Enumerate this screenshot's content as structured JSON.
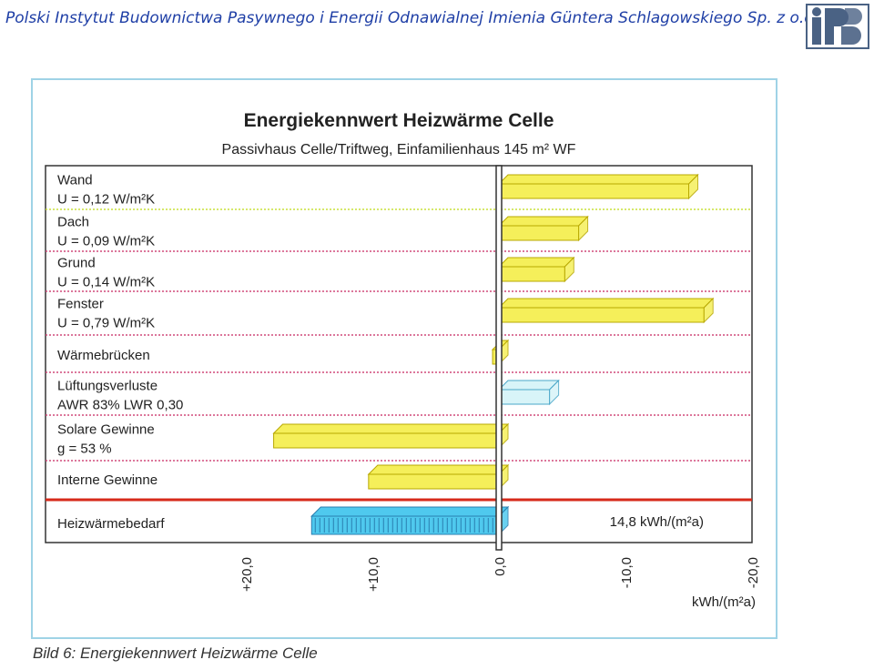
{
  "header": {
    "title": "Polski Instytut Budownictwa Pasywnego i Energii Odnawialnej Imienia Güntera Schlagowskiego Sp. z o.o.",
    "logo_text": "iBP"
  },
  "colors": {
    "header_text": "#1f3fa6",
    "bar_yellow": "#f5ef5a",
    "bar_cyan": "#4fc9ee",
    "bar_light_cyan": "#d8f4f8",
    "total_line": "#d62a1a",
    "frame": "#9fd3e6"
  },
  "caption": "Bild 6: Energiekennwert Heizwärme Celle",
  "chart_data": {
    "type": "bar",
    "orientation": "horizontal",
    "title": "Energiekennwert Heizwärme Celle",
    "subtitle": "Passivhaus Celle/Triftweg, Einfamilienhaus 145 m² WF",
    "xlabel": "kWh/(m²a)",
    "xlim": [
      25,
      -20
    ],
    "ticks": [
      "+20,0",
      "+10,0",
      "0,0",
      "-10,0",
      "-20,0"
    ],
    "tick_values": [
      20,
      10,
      0,
      -10,
      -20
    ],
    "categories": [
      [
        "Wand",
        "U = 0,12 W/m²K"
      ],
      [
        "Dach",
        "U = 0,09 W/m²K"
      ],
      [
        "Grund",
        "U = 0,14 W/m²K"
      ],
      [
        "Fenster",
        "U = 0,79 W/m²K"
      ],
      [
        "Wärmebrücken"
      ],
      [
        "Lüftungsverluste",
        "AWR 83% LWR 0,30"
      ],
      [
        "Solare Gewinne",
        "g = 53 %"
      ],
      [
        "Interne Gewinne"
      ],
      [
        "Heizwärmebedarf"
      ]
    ],
    "values": [
      -15.0,
      -6.3,
      -5.2,
      -16.2,
      0.5,
      -4.0,
      17.8,
      10.3,
      14.8
    ],
    "total_label": "14,8 kWh/(m²a)",
    "grid": true
  }
}
